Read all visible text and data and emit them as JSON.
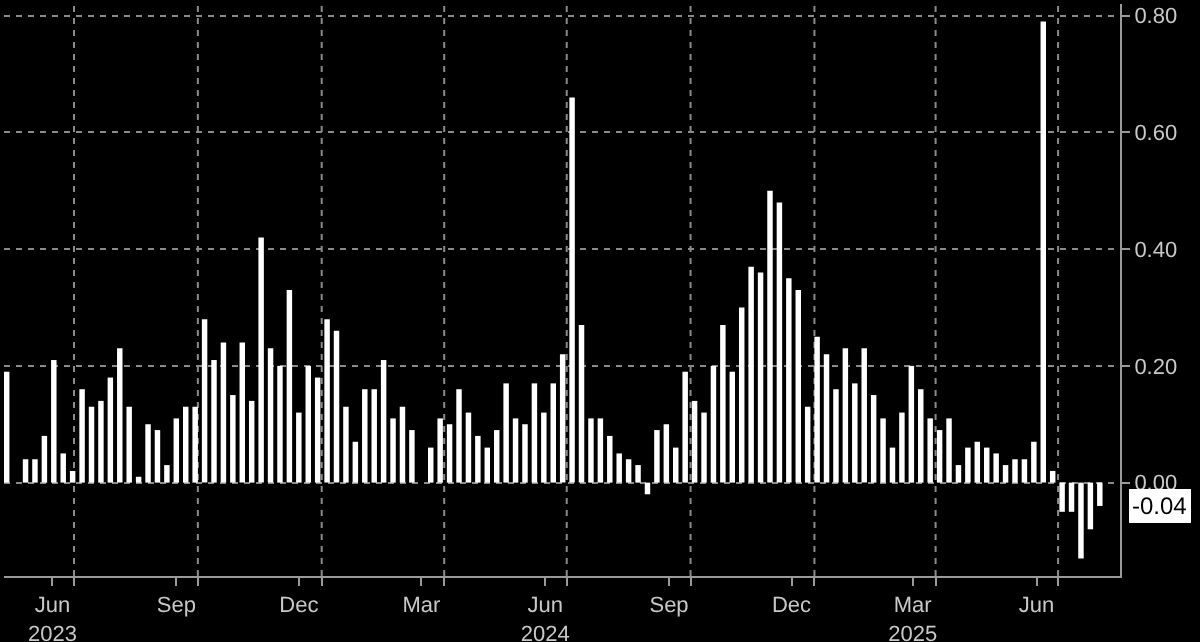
{
  "chart_data": {
    "type": "bar",
    "x": [
      "2023-05-12",
      "2023-05-19",
      "2023-05-26",
      "2023-06-02",
      "2023-06-09",
      "2023-06-16",
      "2023-06-23",
      "2023-06-30",
      "2023-07-07",
      "2023-07-14",
      "2023-07-21",
      "2023-07-28",
      "2023-08-04",
      "2023-08-11",
      "2023-08-18",
      "2023-08-25",
      "2023-09-01",
      "2023-09-08",
      "2023-09-15",
      "2023-09-22",
      "2023-09-29",
      "2023-10-06",
      "2023-10-13",
      "2023-10-20",
      "2023-10-27",
      "2023-11-03",
      "2023-11-10",
      "2023-11-17",
      "2023-11-24",
      "2023-12-01",
      "2023-12-08",
      "2023-12-15",
      "2023-12-22",
      "2023-12-29",
      "2024-01-05",
      "2024-01-12",
      "2024-01-19",
      "2024-01-26",
      "2024-02-02",
      "2024-02-09",
      "2024-02-16",
      "2024-02-23",
      "2024-03-01",
      "2024-03-08",
      "2024-03-15",
      "2024-03-22",
      "2024-03-29",
      "2024-04-05",
      "2024-04-12",
      "2024-04-19",
      "2024-04-26",
      "2024-05-03",
      "2024-05-10",
      "2024-05-17",
      "2024-05-24",
      "2024-05-31",
      "2024-06-07",
      "2024-06-14",
      "2024-06-21",
      "2024-06-28",
      "2024-07-05",
      "2024-07-12",
      "2024-07-19",
      "2024-07-26",
      "2024-08-02",
      "2024-08-09",
      "2024-08-16",
      "2024-08-23",
      "2024-08-30",
      "2024-09-06",
      "2024-09-13",
      "2024-09-20",
      "2024-09-27",
      "2024-10-04",
      "2024-10-11",
      "2024-10-18",
      "2024-10-25",
      "2024-11-01",
      "2024-11-08",
      "2024-11-15",
      "2024-11-22",
      "2024-11-29",
      "2024-12-06",
      "2024-12-13",
      "2024-12-20",
      "2024-12-27",
      "2025-01-03",
      "2025-01-10",
      "2025-01-17",
      "2025-01-24",
      "2025-01-31",
      "2025-02-07",
      "2025-02-14",
      "2025-02-21",
      "2025-02-28",
      "2025-03-07",
      "2025-03-14",
      "2025-03-21",
      "2025-03-28",
      "2025-04-04",
      "2025-04-11",
      "2025-04-18",
      "2025-04-25",
      "2025-05-02",
      "2025-05-09",
      "2025-05-16",
      "2025-05-23",
      "2025-05-30",
      "2025-06-06",
      "2025-06-13",
      "2025-06-20",
      "2025-06-27",
      "2025-07-04",
      "2025-07-11",
      "2025-07-18",
      "2025-07-25",
      "2025-08-01"
    ],
    "values": [
      0.19,
      0.0,
      0.04,
      0.04,
      0.08,
      0.21,
      0.05,
      0.02,
      0.16,
      0.13,
      0.14,
      0.18,
      0.23,
      0.13,
      0.01,
      0.1,
      0.09,
      0.03,
      0.11,
      0.13,
      0.13,
      0.28,
      0.21,
      0.24,
      0.15,
      0.24,
      0.14,
      0.42,
      0.23,
      0.2,
      0.33,
      0.12,
      0.2,
      0.18,
      0.28,
      0.26,
      0.13,
      0.07,
      0.16,
      0.16,
      0.21,
      0.11,
      0.13,
      0.09,
      0.0,
      0.06,
      0.11,
      0.1,
      0.16,
      0.12,
      0.08,
      0.06,
      0.09,
      0.17,
      0.11,
      0.1,
      0.17,
      0.12,
      0.17,
      0.22,
      0.66,
      0.27,
      0.11,
      0.11,
      0.08,
      0.05,
      0.04,
      0.03,
      -0.02,
      0.09,
      0.1,
      0.06,
      0.19,
      0.14,
      0.12,
      0.2,
      0.27,
      0.19,
      0.3,
      0.37,
      0.36,
      0.5,
      0.48,
      0.35,
      0.33,
      0.13,
      0.25,
      0.22,
      0.16,
      0.23,
      0.17,
      0.23,
      0.15,
      0.11,
      0.06,
      0.12,
      0.2,
      0.16,
      0.11,
      0.09,
      0.11,
      0.03,
      0.06,
      0.07,
      0.06,
      0.05,
      0.03,
      0.04,
      0.04,
      0.07,
      0.79,
      0.02,
      -0.05,
      -0.05,
      -0.13,
      -0.08,
      -0.04
    ],
    "color": "#ffffff",
    "xlim": [
      "2023-05-10",
      "2025-08-16"
    ],
    "xticks": [
      {
        "value": "2023-06-15",
        "label": "Jun\n2023"
      },
      {
        "value": "2023-07-01",
        "label": null
      },
      {
        "value": "2023-09-15",
        "label": "Sep"
      },
      {
        "value": "2023-10-01",
        "label": null
      },
      {
        "value": "2023-12-15",
        "label": "Dec"
      },
      {
        "value": "2024-01-01",
        "label": null
      },
      {
        "value": "2024-03-15",
        "label": "Mar"
      },
      {
        "value": "2024-04-01",
        "label": null
      },
      {
        "value": "2024-06-15",
        "label": "Jun\n2024"
      },
      {
        "value": "2024-07-01",
        "label": null
      },
      {
        "value": "2024-09-15",
        "label": "Sep"
      },
      {
        "value": "2024-10-01",
        "label": null
      },
      {
        "value": "2024-12-15",
        "label": "Dec"
      },
      {
        "value": "2025-01-01",
        "label": null
      },
      {
        "value": "2025-03-15",
        "label": "Mar\n2025"
      },
      {
        "value": "2025-04-01",
        "label": null
      },
      {
        "value": "2025-06-15",
        "label": "Jun"
      },
      {
        "value": "2025-07-01",
        "label": null
      }
    ],
    "ylim": [
      -0.16,
      0.82
    ],
    "yticks": [
      {
        "value": 0,
        "label": "0.00"
      },
      {
        "value": 0.2,
        "label": "0.20"
      },
      {
        "value": 0.4,
        "label": "0.40"
      },
      {
        "value": 0.6,
        "label": "0.60"
      },
      {
        "value": 0.8,
        "label": "0.80"
      }
    ],
    "annotations": [
      {
        "text": "-0.04",
        "x": "2025-08-01",
        "y": -0.04
      }
    ],
    "grid": true,
    "legend": false
  }
}
